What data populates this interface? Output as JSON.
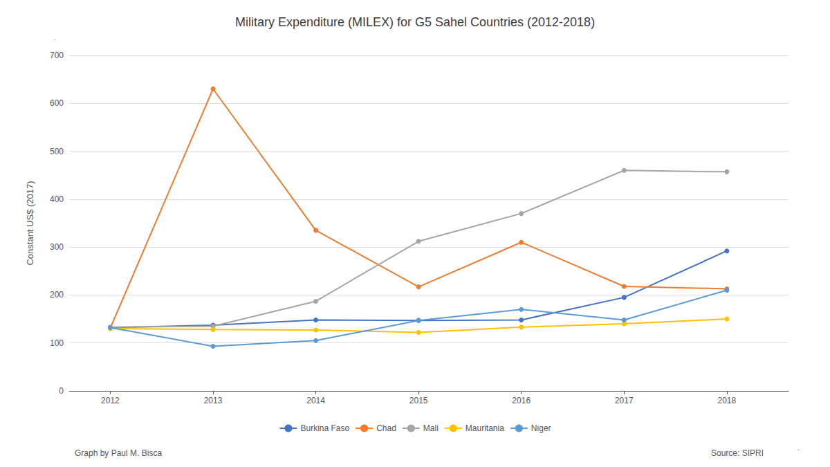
{
  "chart_data": {
    "type": "line",
    "title": "Military Expenditure (MILEX) for G5 Sahel Countries (2012-2018)",
    "y_label": "Constant US$ (2017)",
    "x": [
      2012,
      2013,
      2014,
      2015,
      2016,
      2017,
      2018
    ],
    "series": [
      {
        "name": "Burkina Faso",
        "color": "#4472C4",
        "marker": "circle",
        "values": [
          132,
          137,
          148,
          147,
          148,
          195,
          292
        ]
      },
      {
        "name": "Chad",
        "color": "#ED7D31",
        "marker": "circle",
        "values": [
          131,
          630,
          335,
          217,
          310,
          218,
          213
        ]
      },
      {
        "name": "Mali",
        "color": "#A5A5A5",
        "marker": "circle",
        "values": [
          133,
          135,
          187,
          312,
          370,
          460,
          457
        ]
      },
      {
        "name": "Mauritania",
        "color": "#FFC000",
        "marker": "circle",
        "values": [
          130,
          128,
          127,
          122,
          133,
          140,
          150
        ]
      },
      {
        "name": "Niger",
        "color": "#5B9BD5",
        "marker": "circle",
        "values": [
          132,
          93,
          105,
          147,
          170,
          148,
          210
        ]
      }
    ],
    "xlim": [
      2011.6,
      2018.6
    ],
    "xticks": [
      2012,
      2013,
      2014,
      2015,
      2016,
      2017,
      2018
    ],
    "ylim": [
      0,
      700
    ],
    "yticks": [
      0,
      100,
      200,
      300,
      400,
      500,
      600,
      700
    ],
    "grid": true,
    "legend": "bottom",
    "annotations": [
      "Graph by Paul M. Bisca",
      "Source: SIPRI",
      ".",
      "."
    ]
  }
}
